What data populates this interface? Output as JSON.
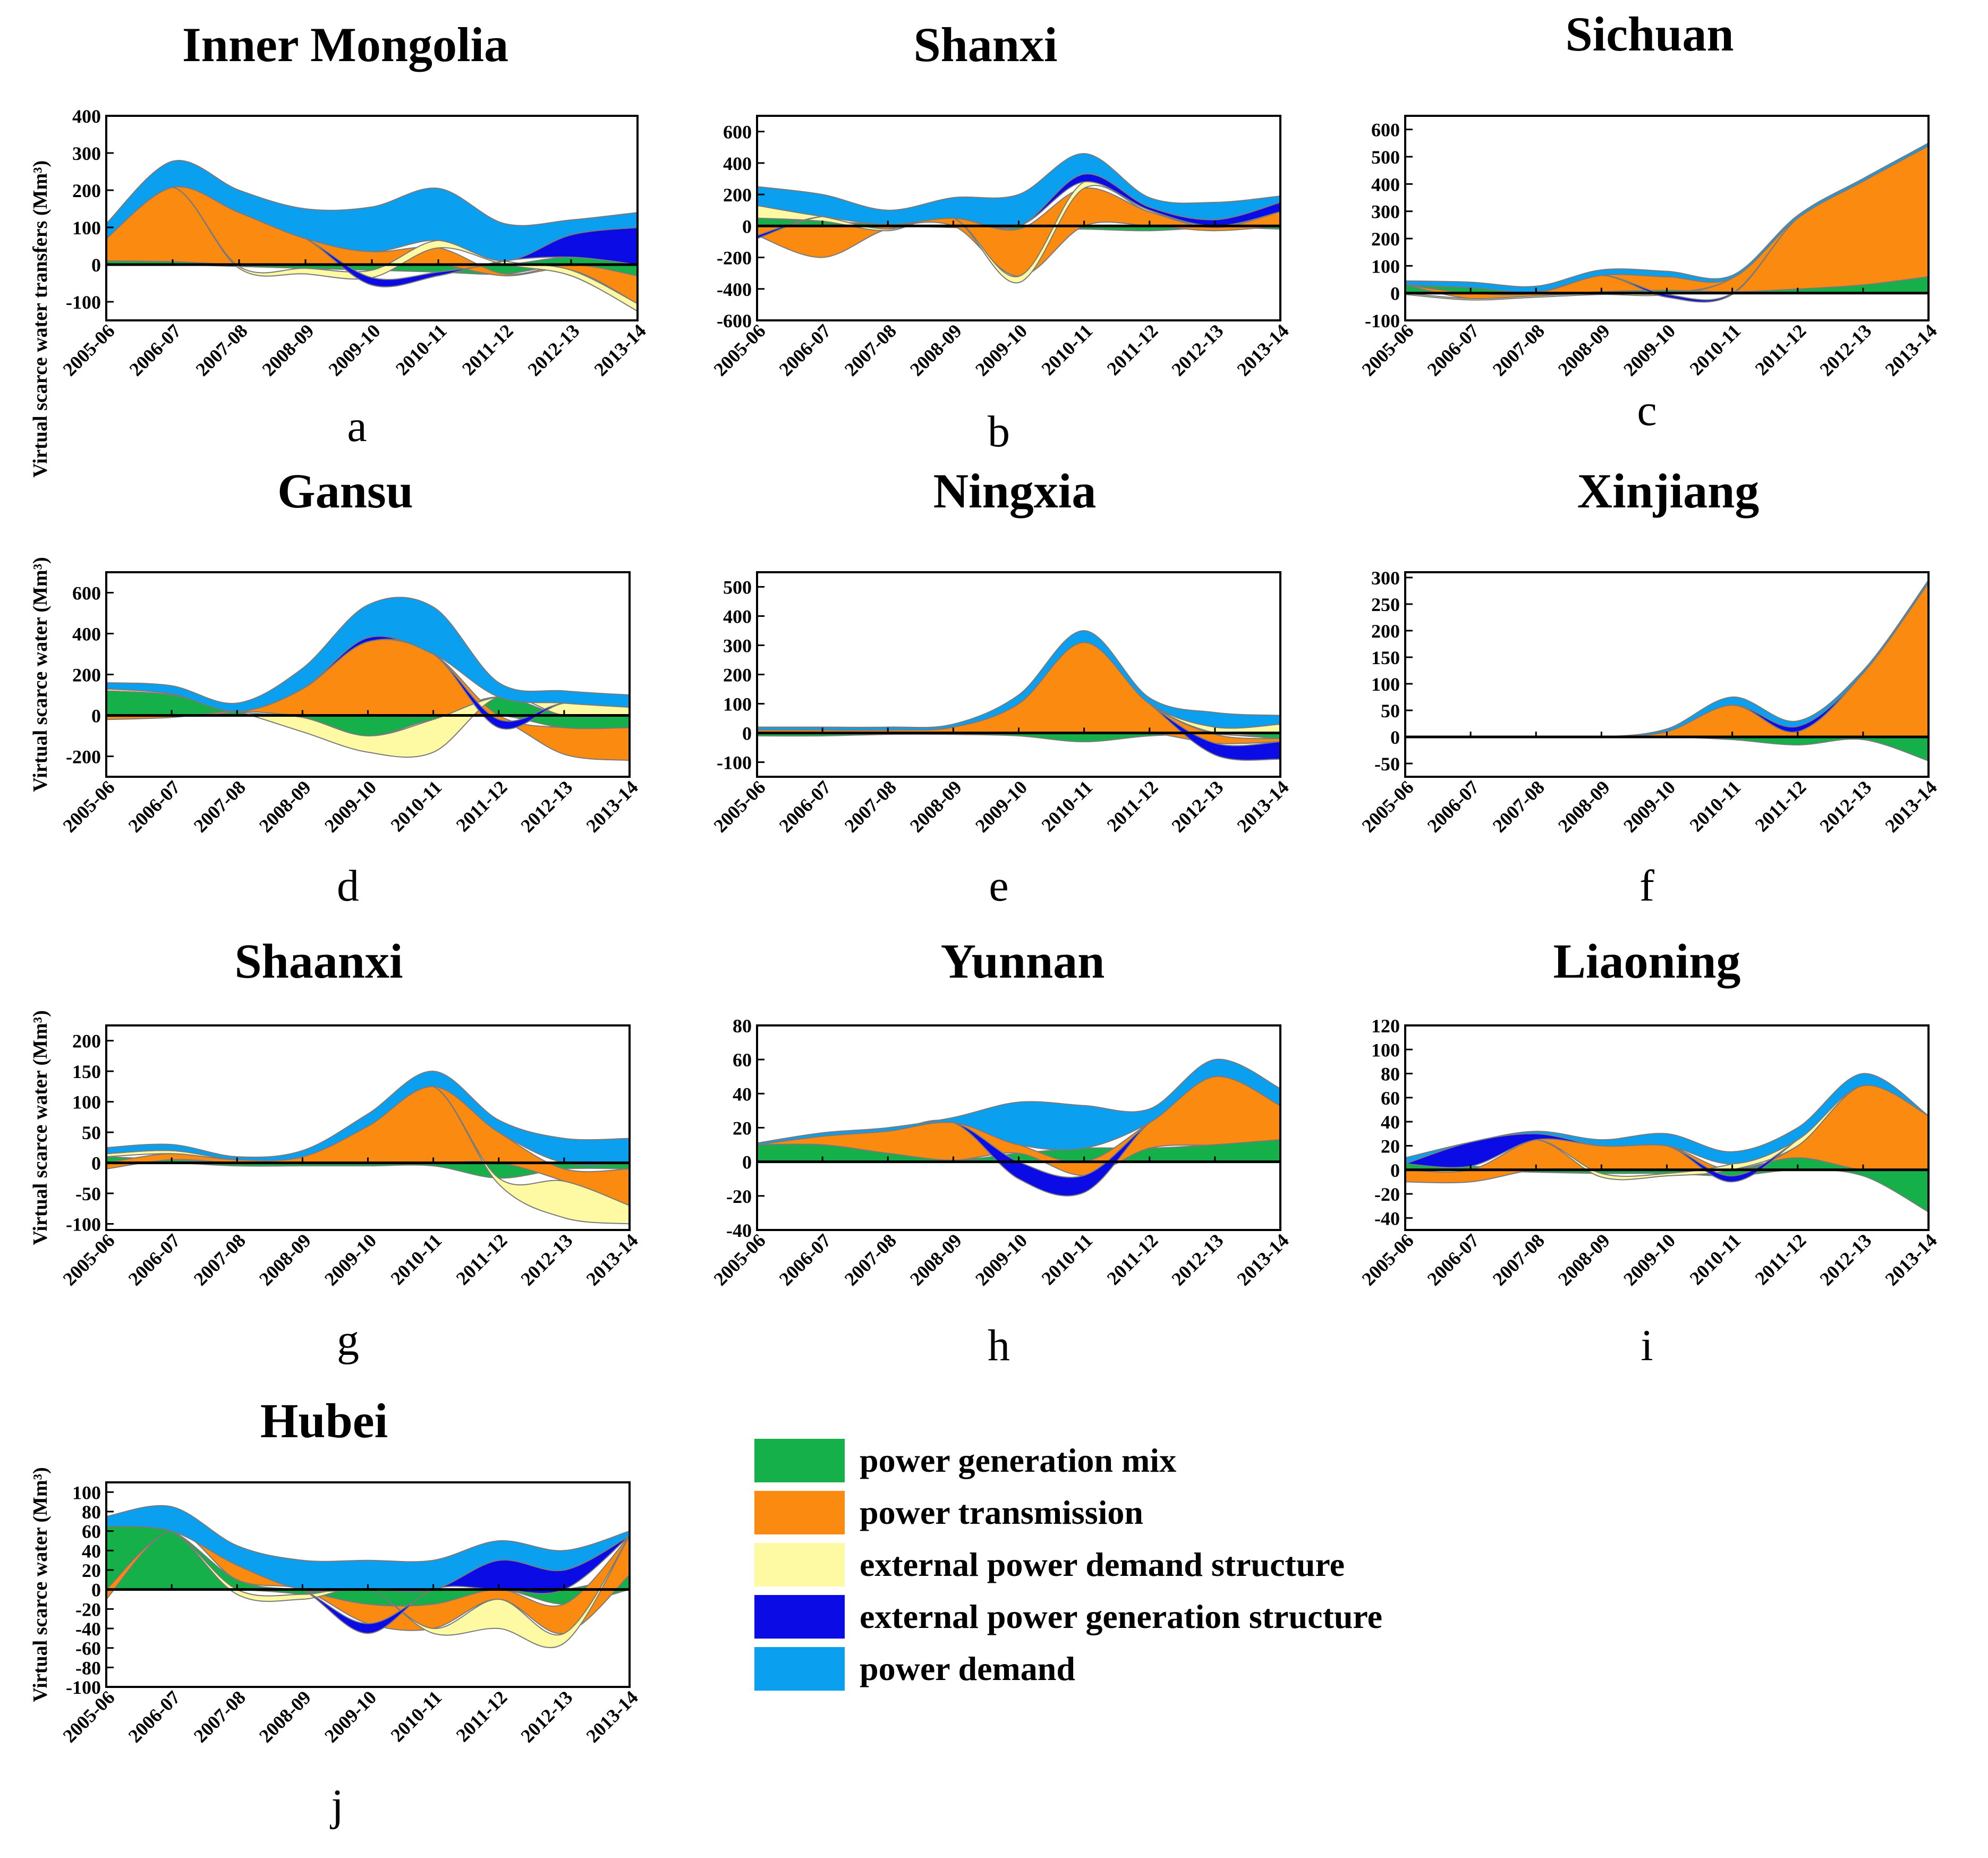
{
  "years": [
    "2005-06",
    "2006-07",
    "2007-08",
    "2008-09",
    "2009-10",
    "2010-11",
    "2011-12",
    "2012-13",
    "2013-14"
  ],
  "legend": [
    {
      "key": "mix",
      "label": "power generation mix",
      "color": "#16b04a"
    },
    {
      "key": "trans",
      "label": "power transmission",
      "color": "#fb8a10"
    },
    {
      "key": "epds",
      "label": "external power demand structure",
      "color": "#fefaa4"
    },
    {
      "key": "epgs",
      "label": "external power generation structure",
      "color": "#0b0be6"
    },
    {
      "key": "demand",
      "label": "power demand",
      "color": "#0aa0ef"
    }
  ],
  "ylabels": {
    "first": "Virtual scarce water transfers (Mm³)",
    "rest": "Virtual scarce water (Mm³)"
  },
  "chart_data": [
    {
      "id": "a",
      "title": "Inner Mongolia",
      "letter": "a",
      "type": "area",
      "ylim": [
        -150,
        400
      ],
      "ticks": [
        -100,
        0,
        100,
        200,
        300,
        400
      ],
      "series": {
        "mix": [
          10,
          8,
          -5,
          -10,
          -15,
          -20,
          -25,
          20,
          -30
        ],
        "trans": [
          60,
          200,
          140,
          70,
          35,
          45,
          -5,
          -15,
          -75
        ],
        "epds": [
          0,
          0,
          -5,
          -15,
          -20,
          20,
          10,
          -15,
          -20
        ],
        "epgs": [
          0,
          0,
          0,
          0,
          -20,
          -10,
          0,
          60,
          100
        ],
        "demand": [
          40,
          70,
          60,
          80,
          120,
          140,
          100,
          40,
          40
        ]
      }
    },
    {
      "id": "b",
      "title": "Shanxi",
      "letter": "b",
      "type": "area",
      "ylim": [
        -600,
        700
      ],
      "ticks": [
        -600,
        -400,
        -200,
        0,
        200,
        400,
        600
      ],
      "series": {
        "mix": [
          50,
          30,
          10,
          -10,
          -20,
          -20,
          -30,
          -10,
          -20
        ],
        "trans": [
          -60,
          -200,
          -20,
          50,
          -300,
          240,
          90,
          -20,
          90
        ],
        "epds": [
          80,
          30,
          -10,
          0,
          -40,
          40,
          10,
          0,
          0
        ],
        "epgs": [
          -20,
          0,
          0,
          0,
          0,
          50,
          20,
          40,
          60
        ],
        "demand": [
          120,
          140,
          90,
          130,
          200,
          130,
          60,
          110,
          40
        ]
      }
    },
    {
      "id": "c",
      "title": "Sichuan",
      "letter": "c",
      "type": "area",
      "ylim": [
        -100,
        650
      ],
      "ticks": [
        -100,
        0,
        100,
        200,
        300,
        400,
        500,
        600
      ],
      "series": {
        "mix": [
          30,
          20,
          5,
          5,
          10,
          5,
          15,
          30,
          60
        ],
        "trans": [
          0,
          -20,
          -10,
          60,
          50,
          50,
          260,
          380,
          480
        ],
        "epds": [
          -5,
          -5,
          -5,
          -5,
          -5,
          0,
          0,
          0,
          0
        ],
        "epgs": [
          0,
          0,
          0,
          0,
          -10,
          -5,
          0,
          0,
          0
        ],
        "demand": [
          15,
          20,
          20,
          20,
          20,
          10,
          10,
          10,
          10
        ]
      }
    },
    {
      "id": "d",
      "title": "Gansu",
      "letter": "d",
      "type": "area",
      "ylim": [
        -300,
        700
      ],
      "ticks": [
        -200,
        0,
        200,
        400,
        600
      ],
      "series": {
        "mix": [
          120,
          100,
          20,
          -10,
          -100,
          -20,
          90,
          -60,
          -60
        ],
        "trans": [
          -20,
          -10,
          0,
          130,
          360,
          300,
          -20,
          -130,
          -160
        ],
        "epds": [
          10,
          5,
          0,
          -70,
          -80,
          -160,
          0,
          60,
          40
        ],
        "epgs": [
          0,
          0,
          0,
          0,
          20,
          0,
          -40,
          0,
          0
        ],
        "demand": [
          30,
          40,
          40,
          100,
          160,
          230,
          70,
          60,
          60
        ]
      }
    },
    {
      "id": "e",
      "title": "Ningxia",
      "letter": "e",
      "type": "area",
      "ylim": [
        -150,
        550
      ],
      "ticks": [
        -100,
        0,
        100,
        200,
        300,
        400,
        500
      ],
      "series": {
        "mix": [
          -10,
          -10,
          -5,
          -5,
          -10,
          -30,
          -10,
          -5,
          -20
        ],
        "trans": [
          10,
          10,
          10,
          20,
          100,
          310,
          100,
          -30,
          -10
        ],
        "epds": [
          0,
          0,
          0,
          0,
          0,
          0,
          0,
          20,
          30
        ],
        "epgs": [
          0,
          0,
          0,
          0,
          0,
          0,
          0,
          -40,
          -60
        ],
        "demand": [
          10,
          10,
          10,
          10,
          30,
          40,
          20,
          50,
          30
        ]
      }
    },
    {
      "id": "f",
      "title": "Xinjiang",
      "letter": "f",
      "type": "area",
      "ylim": [
        -75,
        310
      ],
      "ticks": [
        -50,
        0,
        50,
        100,
        150,
        200,
        250,
        300
      ],
      "series": {
        "mix": [
          0,
          0,
          0,
          0,
          0,
          -5,
          -15,
          -5,
          -45
        ],
        "trans": [
          0,
          0,
          0,
          0,
          10,
          60,
          10,
          120,
          290
        ],
        "epds": [
          0,
          0,
          0,
          0,
          0,
          0,
          0,
          0,
          0
        ],
        "epgs": [
          0,
          0,
          0,
          0,
          0,
          0,
          10,
          0,
          0
        ],
        "demand": [
          0,
          0,
          0,
          0,
          5,
          15,
          10,
          5,
          5
        ]
      }
    },
    {
      "id": "g",
      "title": "Shaanxi",
      "letter": "g",
      "type": "area",
      "ylim": [
        -110,
        225
      ],
      "ticks": [
        -100,
        -50,
        0,
        50,
        100,
        150,
        200
      ],
      "series": {
        "mix": [
          10,
          5,
          -5,
          -5,
          -5,
          -5,
          -25,
          -10,
          -10
        ],
        "trans": [
          -10,
          10,
          5,
          10,
          60,
          125,
          50,
          -20,
          -60
        ],
        "epds": [
          5,
          5,
          0,
          0,
          0,
          0,
          -10,
          -60,
          -30
        ],
        "epgs": [
          0,
          0,
          0,
          0,
          0,
          0,
          0,
          0,
          0
        ],
        "demand": [
          10,
          10,
          5,
          10,
          20,
          25,
          20,
          40,
          40
        ]
      }
    },
    {
      "id": "h",
      "title": "Yunnan",
      "letter": "h",
      "type": "area",
      "ylim": [
        -40,
        80
      ],
      "ticks": [
        -40,
        -20,
        0,
        20,
        40,
        60,
        80
      ],
      "series": {
        "mix": [
          10,
          10,
          5,
          1,
          5,
          8,
          8,
          10,
          13
        ],
        "trans": [
          0,
          5,
          13,
          22,
          5,
          -8,
          15,
          40,
          20
        ],
        "epds": [
          0,
          0,
          0,
          0,
          0,
          0,
          0,
          0,
          0
        ],
        "epgs": [
          0,
          0,
          0,
          0,
          -10,
          -10,
          0,
          0,
          0
        ],
        "demand": [
          1,
          2,
          2,
          3,
          25,
          25,
          8,
          10,
          10
        ]
      }
    },
    {
      "id": "i",
      "title": "Liaoning",
      "letter": "i",
      "type": "area",
      "ylim": [
        -50,
        120
      ],
      "ticks": [
        -40,
        -20,
        0,
        20,
        40,
        60,
        80,
        100,
        120
      ],
      "series": {
        "mix": [
          5,
          3,
          -2,
          -3,
          -3,
          -5,
          10,
          -5,
          -35
        ],
        "trans": [
          -10,
          -10,
          25,
          20,
          20,
          0,
          10,
          70,
          45
        ],
        "epds": [
          0,
          0,
          0,
          -3,
          -2,
          5,
          5,
          0,
          0
        ],
        "epgs": [
          0,
          20,
          5,
          0,
          0,
          -5,
          0,
          0,
          0
        ],
        "demand": [
          5,
          0,
          2,
          5,
          10,
          10,
          10,
          10,
          0
        ]
      }
    },
    {
      "id": "j",
      "title": "Hubei",
      "letter": "j",
      "type": "area",
      "ylim": [
        -100,
        110
      ],
      "ticks": [
        -100,
        -80,
        -60,
        -40,
        -20,
        0,
        20,
        40,
        60,
        80,
        100
      ],
      "series": {
        "mix": [
          65,
          60,
          10,
          -5,
          -15,
          -15,
          0,
          -15,
          15
        ],
        "trans": [
          -10,
          0,
          15,
          0,
          -20,
          -25,
          -10,
          -30,
          40
        ],
        "epds": [
          0,
          0,
          -5,
          -5,
          0,
          -5,
          -30,
          -10,
          0
        ],
        "epgs": [
          0,
          0,
          0,
          0,
          -10,
          0,
          30,
          20,
          0
        ],
        "demand": [
          10,
          25,
          20,
          30,
          30,
          30,
          20,
          20,
          5
        ]
      }
    }
  ]
}
